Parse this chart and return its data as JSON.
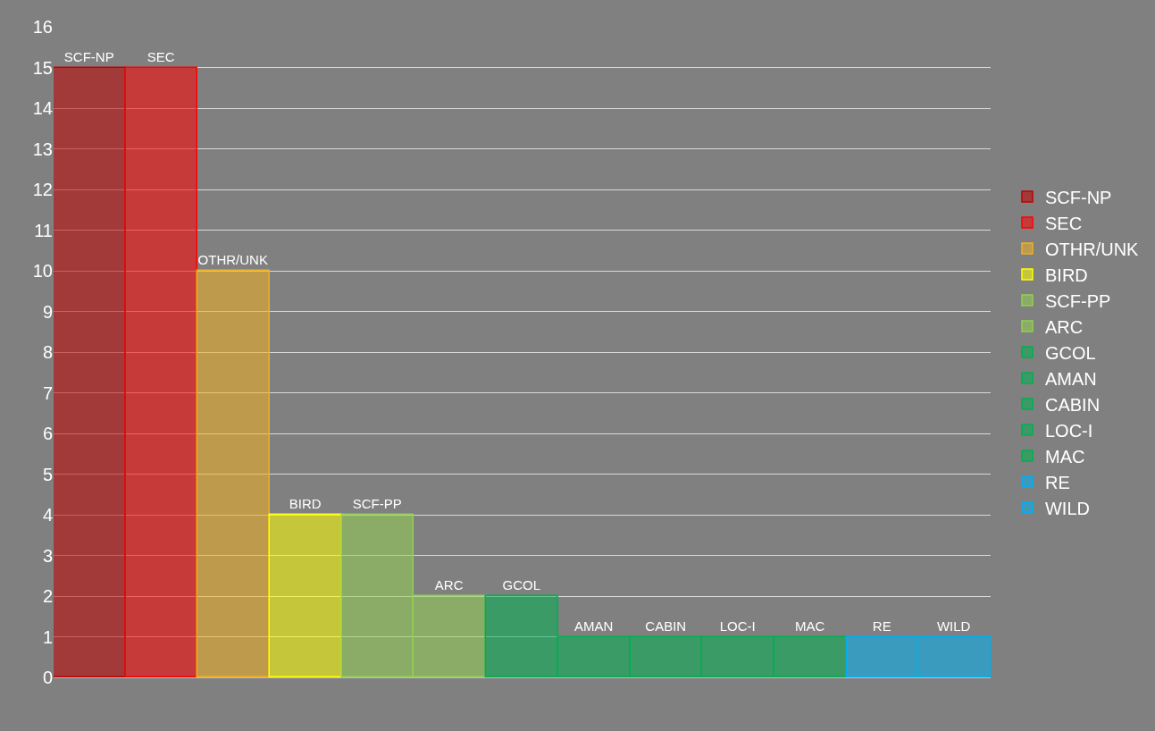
{
  "chart_data": {
    "type": "bar",
    "categories": [
      null,
      null,
      null,
      null,
      null,
      null,
      null,
      null,
      null,
      null,
      null,
      null,
      null
    ],
    "series": [
      {
        "name": "SCF-NP",
        "color": "#c00000",
        "values": [
          15,
          null,
          null,
          null,
          null,
          null,
          null,
          null,
          null,
          null,
          null,
          null,
          null
        ]
      },
      {
        "name": "SEC",
        "color": "#ff0000",
        "values": [
          null,
          15,
          null,
          null,
          null,
          null,
          null,
          null,
          null,
          null,
          null,
          null,
          null
        ]
      },
      {
        "name": "OTHR/UNK",
        "color": "#f0b020",
        "values": [
          null,
          null,
          10,
          null,
          null,
          null,
          null,
          null,
          null,
          null,
          null,
          null,
          null
        ]
      },
      {
        "name": "BIRD",
        "color": "#ffff00",
        "values": [
          null,
          null,
          null,
          4,
          null,
          null,
          null,
          null,
          null,
          null,
          null,
          null,
          null
        ]
      },
      {
        "name": "SCF-PP",
        "color": "#92d050",
        "values": [
          null,
          null,
          null,
          null,
          4,
          null,
          null,
          null,
          null,
          null,
          null,
          null,
          null
        ]
      },
      {
        "name": "ARC",
        "color": "#92d050",
        "values": [
          null,
          null,
          null,
          null,
          null,
          2,
          null,
          null,
          null,
          null,
          null,
          null,
          null
        ]
      },
      {
        "name": "GCOL",
        "color": "#00b050",
        "values": [
          null,
          null,
          null,
          null,
          null,
          null,
          2,
          null,
          null,
          null,
          null,
          null,
          null
        ]
      },
      {
        "name": "AMAN",
        "color": "#00b050",
        "values": [
          null,
          null,
          null,
          null,
          null,
          null,
          null,
          1,
          null,
          null,
          null,
          null,
          null
        ]
      },
      {
        "name": "CABIN",
        "color": "#00b050",
        "values": [
          null,
          null,
          null,
          null,
          null,
          null,
          null,
          null,
          1,
          null,
          null,
          null,
          null
        ]
      },
      {
        "name": "LOC-I",
        "color": "#00b050",
        "values": [
          null,
          null,
          null,
          null,
          null,
          null,
          null,
          null,
          null,
          1,
          null,
          null,
          null
        ]
      },
      {
        "name": "MAC",
        "color": "#00b050",
        "values": [
          null,
          null,
          null,
          null,
          null,
          null,
          null,
          null,
          null,
          null,
          1,
          null,
          null
        ]
      },
      {
        "name": "RE",
        "color": "#00b0f0",
        "values": [
          null,
          null,
          null,
          null,
          null,
          null,
          null,
          null,
          null,
          null,
          null,
          1,
          null
        ]
      },
      {
        "name": "WILD",
        "color": "#00b0f0",
        "values": [
          null,
          null,
          null,
          null,
          null,
          null,
          null,
          null,
          null,
          null,
          null,
          null,
          1
        ]
      }
    ],
    "ylim": [
      0,
      16
    ],
    "yticks": [
      0,
      1,
      2,
      3,
      4,
      5,
      6,
      7,
      8,
      9,
      10,
      11,
      12,
      13,
      14,
      15,
      16
    ],
    "grid": "y",
    "legend": "right"
  }
}
